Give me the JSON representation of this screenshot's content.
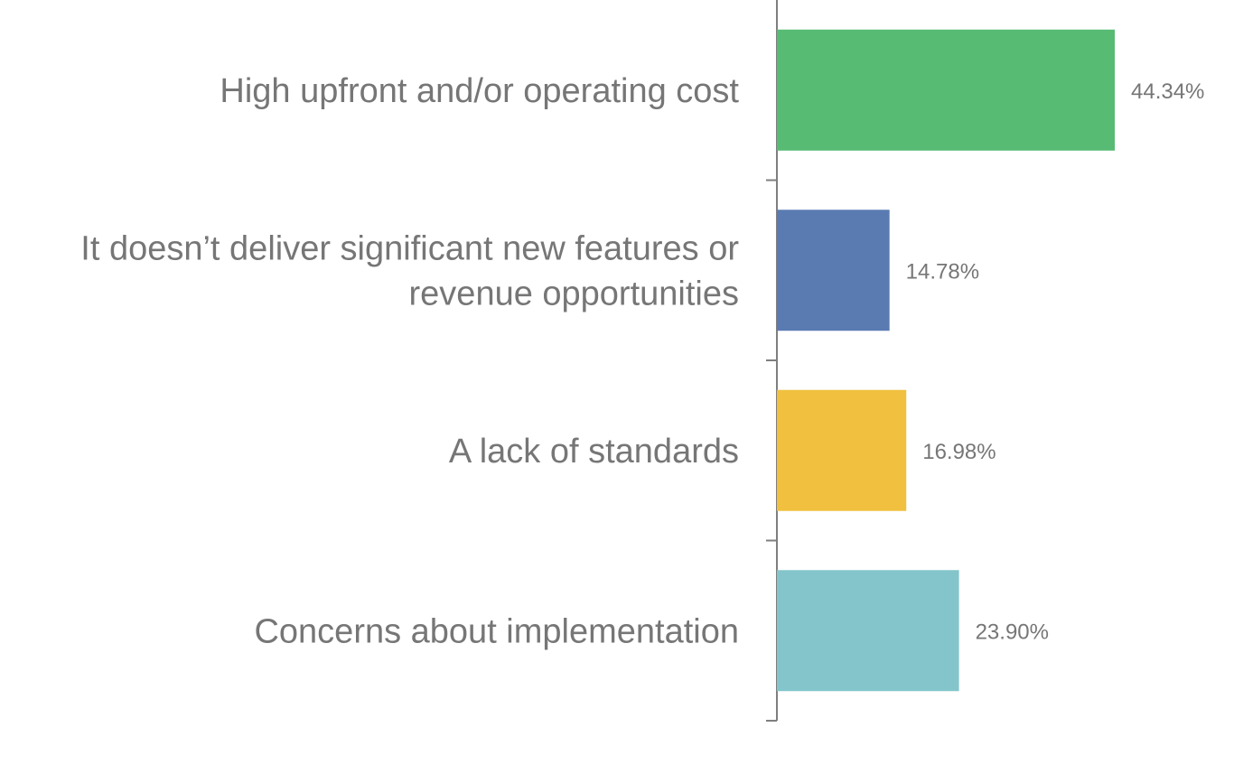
{
  "chart_data": {
    "type": "bar",
    "orientation": "horizontal",
    "categories": [
      [
        "High upfront and/or operating cost"
      ],
      [
        "It doesn’t deliver significant new features or",
        "revenue opportunities"
      ],
      [
        "A lack of standards"
      ],
      [
        "Concerns about implementation"
      ]
    ],
    "values": [
      44.34,
      14.78,
      16.98,
      23.9
    ],
    "value_labels": [
      "44.34%",
      "14.78%",
      "16.98%",
      "23.90%"
    ],
    "colors": [
      "#57bb73",
      "#5a7bb2",
      "#f0c03e",
      "#83c5ca"
    ],
    "xlim": [
      0,
      50
    ],
    "grid": false,
    "legend": "none",
    "title": "",
    "xlabel": "",
    "ylabel": ""
  }
}
